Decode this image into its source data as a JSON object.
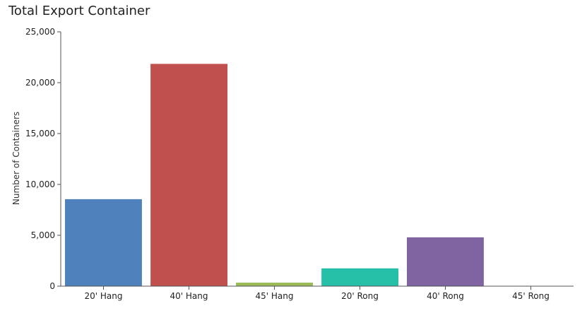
{
  "chart_data": {
    "type": "bar",
    "title": "Total Export Container",
    "xlabel": "",
    "ylabel": "Number of Containers",
    "categories": [
      "20' Hang",
      "40' Hang",
      "45' Hang",
      "20' Rong",
      "40' Rong",
      "45' Rong"
    ],
    "values": [
      8550,
      21850,
      350,
      1750,
      4800,
      0
    ],
    "colors": [
      "#4f81bd",
      "#c0504d",
      "#9bbb59",
      "#26c0a8",
      "#8064a2",
      "#4bacc6"
    ],
    "ylim": [
      0,
      25000
    ],
    "yticks": [
      0,
      5000,
      10000,
      15000,
      20000,
      25000
    ],
    "ytick_labels": [
      "0",
      "5,000",
      "10,000",
      "15,000",
      "20,000",
      "25,000"
    ],
    "grid": false,
    "legend": "none"
  }
}
